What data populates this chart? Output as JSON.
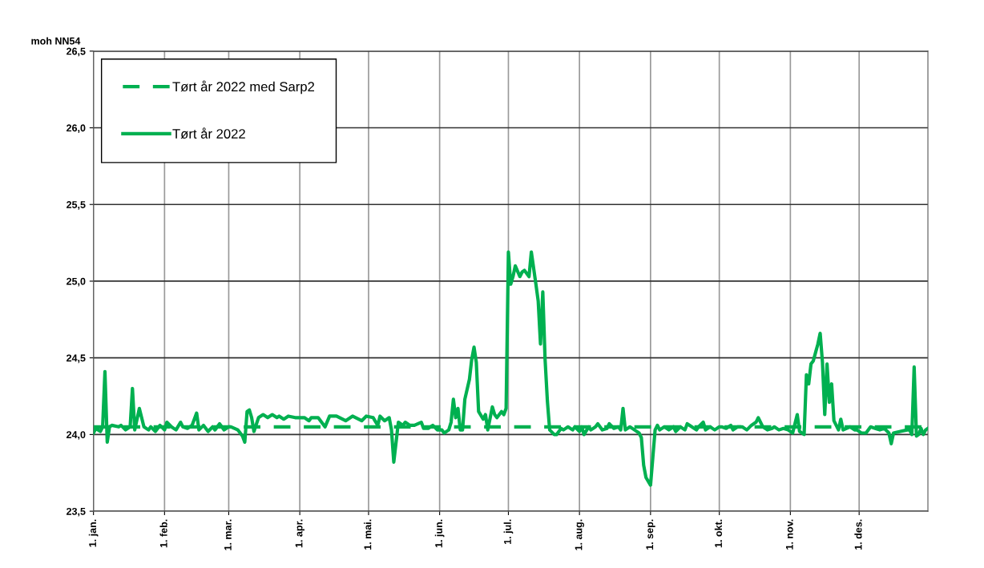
{
  "chart_data": {
    "type": "line",
    "ylabel": "moh NN54",
    "xlim": [
      "2022-01-01",
      "2022-12-31"
    ],
    "xticks": [
      {
        "value": "2022-01-01",
        "label": "1. jan."
      },
      {
        "value": "2022-02-01",
        "label": "1. feb."
      },
      {
        "value": "2022-03-01",
        "label": "1. mar."
      },
      {
        "value": "2022-04-01",
        "label": "1. apr."
      },
      {
        "value": "2022-05-01",
        "label": "1. mai."
      },
      {
        "value": "2022-06-01",
        "label": "1. jun."
      },
      {
        "value": "2022-07-01",
        "label": "1. jul."
      },
      {
        "value": "2022-08-01",
        "label": "1. aug."
      },
      {
        "value": "2022-09-01",
        "label": "1. sep."
      },
      {
        "value": "2022-10-01",
        "label": "1. okt."
      },
      {
        "value": "2022-11-01",
        "label": "1. nov."
      },
      {
        "value": "2022-12-01",
        "label": "1. des."
      }
    ],
    "ylim": [
      23.5,
      26.5
    ],
    "yticks": [
      {
        "value": 23.5,
        "label": "23,5"
      },
      {
        "value": 24.0,
        "label": "24,0"
      },
      {
        "value": 24.5,
        "label": "24,5"
      },
      {
        "value": 25.0,
        "label": "25,0"
      },
      {
        "value": 25.5,
        "label": "25,5"
      },
      {
        "value": 26.0,
        "label": "26,0"
      },
      {
        "value": 26.5,
        "label": "26,5"
      }
    ],
    "grid": true,
    "legend": "top left",
    "marker": "none",
    "series": [
      {
        "name": "Tørt år 2022 med Sarp2",
        "color": "#00b050",
        "line_style": "dashed",
        "x": [
          "2022-01-01",
          "2022-12-31"
        ],
        "values": [
          24.05,
          24.05
        ]
      },
      {
        "name": "Tørt år 2022",
        "color": "#00b050",
        "line_style": "solid",
        "x": [
          "2022-01-01",
          "2022-01-02",
          "2022-01-04",
          "2022-01-05",
          "2022-01-06",
          "2022-01-07",
          "2022-01-08",
          "2022-01-09",
          "2022-01-12",
          "2022-01-13",
          "2022-01-15",
          "2022-01-17",
          "2022-01-18",
          "2022-01-19",
          "2022-01-21",
          "2022-01-23",
          "2022-01-25",
          "2022-01-26",
          "2022-01-28",
          "2022-01-30",
          "2022-02-01",
          "2022-02-02",
          "2022-02-04",
          "2022-02-06",
          "2022-02-08",
          "2022-02-09",
          "2022-02-11",
          "2022-02-13",
          "2022-02-15",
          "2022-02-16",
          "2022-02-18",
          "2022-02-20",
          "2022-02-22",
          "2022-02-23",
          "2022-02-25",
          "2022-02-27",
          "2022-03-01",
          "2022-03-02",
          "2022-03-05",
          "2022-03-07",
          "2022-03-08",
          "2022-03-09",
          "2022-03-10",
          "2022-03-11",
          "2022-03-12",
          "2022-03-14",
          "2022-03-16",
          "2022-03-18",
          "2022-03-20",
          "2022-03-22",
          "2022-03-23",
          "2022-03-25",
          "2022-03-27",
          "2022-03-30",
          "2022-04-03",
          "2022-04-05",
          "2022-04-06",
          "2022-04-09",
          "2022-04-12",
          "2022-04-14",
          "2022-04-17",
          "2022-04-21",
          "2022-04-24",
          "2022-04-28",
          "2022-04-30",
          "2022-05-03",
          "2022-05-05",
          "2022-05-06",
          "2022-05-08",
          "2022-05-10",
          "2022-05-11",
          "2022-05-12",
          "2022-05-13",
          "2022-05-14",
          "2022-05-16",
          "2022-05-17",
          "2022-05-19",
          "2022-05-21",
          "2022-05-24",
          "2022-05-25",
          "2022-05-27",
          "2022-05-29",
          "2022-05-31",
          "2022-06-02",
          "2022-06-03",
          "2022-06-05",
          "2022-06-06",
          "2022-06-07",
          "2022-06-08",
          "2022-06-09",
          "2022-06-10",
          "2022-06-11",
          "2022-06-12",
          "2022-06-14",
          "2022-06-15",
          "2022-06-16",
          "2022-06-17",
          "2022-06-18",
          "2022-06-20",
          "2022-06-21",
          "2022-06-22",
          "2022-06-24",
          "2022-06-25",
          "2022-06-26",
          "2022-06-28",
          "2022-06-29",
          "2022-06-30",
          "2022-07-01",
          "2022-07-02",
          "2022-07-03",
          "2022-07-04",
          "2022-07-06",
          "2022-07-07",
          "2022-07-08",
          "2022-07-10",
          "2022-07-11",
          "2022-07-13",
          "2022-07-14",
          "2022-07-15",
          "2022-07-16",
          "2022-07-17",
          "2022-07-18",
          "2022-07-19",
          "2022-07-21",
          "2022-07-22",
          "2022-07-24",
          "2022-07-25",
          "2022-07-27",
          "2022-07-29",
          "2022-07-30",
          "2022-08-01",
          "2022-08-02",
          "2022-08-03",
          "2022-08-05",
          "2022-08-06",
          "2022-08-08",
          "2022-08-09",
          "2022-08-11",
          "2022-08-13",
          "2022-08-14",
          "2022-08-16",
          "2022-08-18",
          "2022-08-19",
          "2022-08-20",
          "2022-08-21",
          "2022-08-23",
          "2022-08-25",
          "2022-08-27",
          "2022-08-28",
          "2022-08-29",
          "2022-08-30",
          "2022-09-01",
          "2022-09-02",
          "2022-09-03",
          "2022-09-04",
          "2022-09-05",
          "2022-09-07",
          "2022-09-09",
          "2022-09-11",
          "2022-09-12",
          "2022-09-14",
          "2022-09-16",
          "2022-09-17",
          "2022-09-19",
          "2022-09-21",
          "2022-09-22",
          "2022-09-24",
          "2022-09-25",
          "2022-09-27",
          "2022-09-29",
          "2022-10-01",
          "2022-10-02",
          "2022-10-04",
          "2022-10-06",
          "2022-10-07",
          "2022-10-09",
          "2022-10-11",
          "2022-10-13",
          "2022-10-15",
          "2022-10-17",
          "2022-10-18",
          "2022-10-20",
          "2022-10-22",
          "2022-10-24",
          "2022-10-25",
          "2022-10-27",
          "2022-10-29",
          "2022-10-31",
          "2022-11-02",
          "2022-11-03",
          "2022-11-04",
          "2022-11-05",
          "2022-11-07",
          "2022-11-08",
          "2022-11-09",
          "2022-11-10",
          "2022-11-11",
          "2022-11-13",
          "2022-11-14",
          "2022-11-15",
          "2022-11-16",
          "2022-11-17",
          "2022-11-18",
          "2022-11-19",
          "2022-11-20",
          "2022-11-22",
          "2022-11-23",
          "2022-11-24",
          "2022-11-27",
          "2022-11-29",
          "2022-11-30",
          "2022-12-02",
          "2022-12-04",
          "2022-12-06",
          "2022-12-08",
          "2022-12-10",
          "2022-12-12",
          "2022-12-14",
          "2022-12-15",
          "2022-12-16",
          "2022-12-19",
          "2022-12-22",
          "2022-12-23",
          "2022-12-24",
          "2022-12-25",
          "2022-12-26",
          "2022-12-27",
          "2022-12-28",
          "2022-12-29",
          "2022-12-30",
          "2022-12-31"
        ],
        "values": [
          24.01,
          24.04,
          24.02,
          24.05,
          24.41,
          23.95,
          24.05,
          24.06,
          24.05,
          24.06,
          24.03,
          24.05,
          24.3,
          24.03,
          24.17,
          24.05,
          24.03,
          24.05,
          24.02,
          24.06,
          24.03,
          24.08,
          24.05,
          24.03,
          24.08,
          24.05,
          24.04,
          24.06,
          24.14,
          24.03,
          24.06,
          24.02,
          24.05,
          24.03,
          24.07,
          24.03,
          24.05,
          24.05,
          24.03,
          23.99,
          23.95,
          24.15,
          24.16,
          24.11,
          24.02,
          24.11,
          24.13,
          24.11,
          24.13,
          24.11,
          24.12,
          24.1,
          24.12,
          24.11,
          24.11,
          24.09,
          24.11,
          24.11,
          24.05,
          24.12,
          24.12,
          24.09,
          24.12,
          24.09,
          24.12,
          24.11,
          24.06,
          24.12,
          24.09,
          24.11,
          24.03,
          23.82,
          23.95,
          24.08,
          24.06,
          24.08,
          24.06,
          24.06,
          24.08,
          24.04,
          24.04,
          24.06,
          24.03,
          24.03,
          24.01,
          24.03,
          24.08,
          24.23,
          24.11,
          24.17,
          24.03,
          24.03,
          24.23,
          24.36,
          24.49,
          24.57,
          24.47,
          24.15,
          24.1,
          24.13,
          24.03,
          24.18,
          24.13,
          24.11,
          24.15,
          24.13,
          24.17,
          25.19,
          24.98,
          25.03,
          25.1,
          25.03,
          25.06,
          25.07,
          25.03,
          25.19,
          24.98,
          24.87,
          24.59,
          24.93,
          24.49,
          24.22,
          24.03,
          24.0,
          24.0,
          24.04,
          24.03,
          24.05,
          24.03,
          24.05,
          24.02,
          24.05,
          24.0,
          24.05,
          24.03,
          24.05,
          24.07,
          24.03,
          24.04,
          24.07,
          24.04,
          24.05,
          24.03,
          24.17,
          24.03,
          24.05,
          24.03,
          24.01,
          23.98,
          23.8,
          23.72,
          23.67,
          23.85,
          24.03,
          24.06,
          24.03,
          24.05,
          24.03,
          24.05,
          24.02,
          24.05,
          24.03,
          24.07,
          24.05,
          24.03,
          24.05,
          24.08,
          24.03,
          24.05,
          24.03,
          24.05,
          24.05,
          24.04,
          24.06,
          24.03,
          24.05,
          24.05,
          24.03,
          24.06,
          24.08,
          24.11,
          24.05,
          24.03,
          24.04,
          24.05,
          24.03,
          24.04,
          24.03,
          24.01,
          24.07,
          24.13,
          24.02,
          24.0,
          24.39,
          24.33,
          24.46,
          24.48,
          24.59,
          24.66,
          24.47,
          24.13,
          24.46,
          24.21,
          24.33,
          24.09,
          24.03,
          24.1,
          24.03,
          24.05,
          24.03,
          24.03,
          24.01,
          24.01,
          24.05,
          24.04,
          24.03,
          24.04,
          24.01,
          23.94,
          24.01,
          24.02,
          24.03,
          24.03,
          24.0,
          24.44,
          23.99,
          24.0,
          24.04,
          24.0,
          24.03,
          24.04
        ]
      }
    ]
  }
}
